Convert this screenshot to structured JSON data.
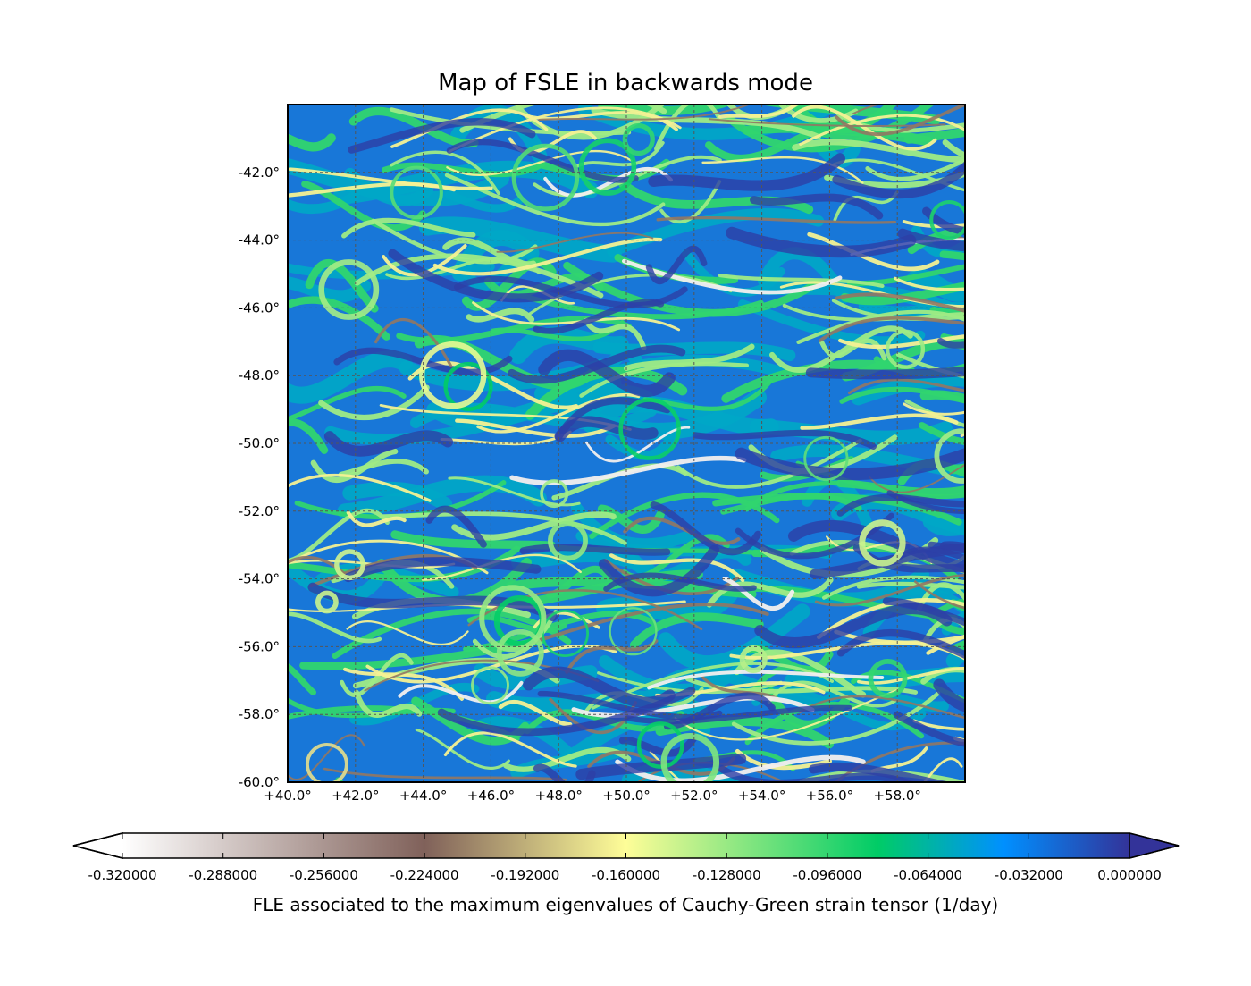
{
  "chart_data": {
    "type": "heatmap",
    "title": "Map of FSLE in backwards mode",
    "xlabel": "",
    "ylabel": "",
    "x_tick_labels": [
      "+40.0°",
      "+42.0°",
      "+44.0°",
      "+46.0°",
      "+48.0°",
      "+50.0°",
      "+52.0°",
      "+54.0°",
      "+56.0°",
      "+58.0°"
    ],
    "y_tick_labels": [
      "-42.0°",
      "-44.0°",
      "-46.0°",
      "-48.0°",
      "-50.0°",
      "-52.0°",
      "-54.0°",
      "-56.0°",
      "-58.0°",
      "-60.0°"
    ],
    "x_ticks": [
      40,
      42,
      44,
      46,
      48,
      50,
      52,
      54,
      56,
      58
    ],
    "y_ticks": [
      -42,
      -44,
      -46,
      -48,
      -50,
      -52,
      -54,
      -56,
      -58,
      -60
    ],
    "xlim": [
      40,
      60
    ],
    "ylim": [
      -60,
      -40
    ],
    "grid": true,
    "colorbar": {
      "label": "FLE associated to the maximum eigenvalues of Cauchy-Green strain tensor (1/day)",
      "orientation": "horizontal",
      "placement": "bottom",
      "extend": "both",
      "range": [
        -0.32,
        0.0
      ],
      "ticks": [
        -0.32,
        -0.288,
        -0.256,
        -0.224,
        -0.192,
        -0.16,
        -0.128,
        -0.096,
        -0.064,
        -0.032,
        0.0
      ],
      "tick_labels": [
        "-0.320000",
        "-0.288000",
        "-0.256000",
        "-0.224000",
        "-0.192000",
        "-0.160000",
        "-0.128000",
        "-0.096000",
        "-0.064000",
        "-0.032000",
        "0.000000"
      ],
      "colormap_stops": [
        {
          "value": -0.32,
          "color": "#ffffff"
        },
        {
          "value": -0.224,
          "color": "#80615a"
        },
        {
          "value": -0.16,
          "color": "#fefd98"
        },
        {
          "value": -0.08,
          "color": "#00cc66"
        },
        {
          "value": -0.04,
          "color": "#0090ff"
        },
        {
          "value": 0.0,
          "color": "#333399"
        }
      ],
      "over_color": "#333399",
      "under_color": "#ffffff"
    }
  }
}
